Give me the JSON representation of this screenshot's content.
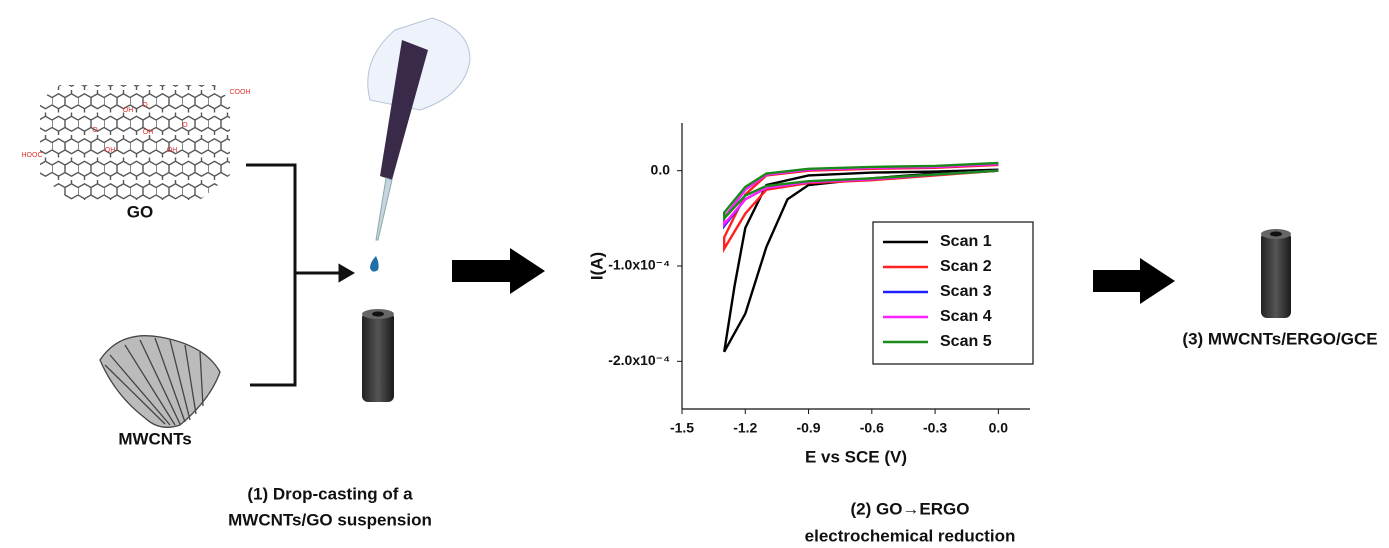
{
  "labels": {
    "go": "GO",
    "mwcnts": "MWCNTs",
    "step1": [
      "(1) Drop-casting of a",
      "MWCNTs/GO suspension"
    ],
    "step2": [
      "(2) GO→ERGO",
      "electrochemical reduction"
    ],
    "step3": "(3) MWCNTs/ERGO/GCE",
    "molecule": [
      "COOH",
      "HOOC",
      "OH",
      "OH",
      "OH",
      "OH",
      "O",
      "O",
      "O"
    ]
  },
  "chart_data": {
    "type": "line",
    "xlabel": "E vs SCE (V)",
    "ylabel": "I(A)",
    "xlim": [
      -1.5,
      0.15
    ],
    "ylim": [
      -0.00025,
      5e-05
    ],
    "xticks": [
      -1.5,
      -1.2,
      -0.9,
      -0.6,
      -0.3,
      {
        "value": 0,
        "label": "0.0"
      }
    ],
    "yticks": [
      {
        "value": 0,
        "label": "0.0"
      },
      {
        "value": -0.0001,
        "label": "-1.0x10⁻⁴"
      },
      {
        "value": -0.0002,
        "label": "-2.0x10⁻⁴"
      }
    ],
    "series": [
      {
        "name": "Scan 1",
        "color": "#000000",
        "x": [
          0,
          -0.3,
          -0.6,
          -0.9,
          -1.0,
          -1.1,
          -1.2,
          -1.3,
          -1.25,
          -1.2,
          -1.1,
          -0.9,
          -0.6,
          -0.3,
          0
        ],
        "values": [
          0,
          -3e-06,
          -8e-06,
          -1.5e-05,
          -3e-05,
          -8e-05,
          -0.00015,
          -0.00019,
          -0.00012,
          -6e-05,
          -1.5e-05,
          -5e-06,
          -2e-06,
          -1e-06,
          1e-06
        ]
      },
      {
        "name": "Scan 2",
        "color": "#ff2020",
        "x": [
          0,
          -0.3,
          -0.6,
          -0.9,
          -1.1,
          -1.2,
          -1.3,
          -1.3,
          -1.2,
          -1.1,
          -0.9,
          -0.6,
          -0.3,
          0
        ],
        "values": [
          0,
          -5e-06,
          -1e-05,
          -1.3e-05,
          -2e-05,
          -4.5e-05,
          -8.2e-05,
          -7e-05,
          -2.5e-05,
          -5e-06,
          0,
          2e-06,
          3e-06,
          6e-06
        ]
      },
      {
        "name": "Scan 3",
        "color": "#2020ff",
        "x": [
          0,
          -0.3,
          -0.6,
          -0.9,
          -1.1,
          -1.2,
          -1.3,
          -1.3,
          -1.2,
          -1.1,
          -0.9,
          -0.6,
          -0.3,
          0
        ],
        "values": [
          0,
          -4e-06,
          -9e-06,
          -1.2e-05,
          -1.8e-05,
          -3e-05,
          -5.8e-05,
          -5e-05,
          -2e-05,
          -4e-06,
          1e-06,
          3e-06,
          4e-06,
          7e-06
        ]
      },
      {
        "name": "Scan 4",
        "color": "#ff20ff",
        "x": [
          0,
          -0.3,
          -0.6,
          -0.9,
          -1.1,
          -1.2,
          -1.3,
          -1.3,
          -1.2,
          -1.1,
          -0.9,
          -0.6,
          -0.3,
          0
        ],
        "values": [
          0,
          -4e-06,
          -9e-06,
          -1.2e-05,
          -1.8e-05,
          -3e-05,
          -5.6e-05,
          -4.9e-05,
          -2e-05,
          -4e-06,
          1e-06,
          3e-06,
          4e-06,
          7e-06
        ]
      },
      {
        "name": "Scan 5",
        "color": "#1a8a1a",
        "x": [
          0,
          -0.3,
          -0.6,
          -0.9,
          -1.1,
          -1.2,
          -1.3,
          -1.3,
          -1.2,
          -1.1,
          -0.9,
          -0.6,
          -0.3,
          0
        ],
        "values": [
          0,
          -4e-06,
          -8e-06,
          -1.1e-05,
          -1.6e-05,
          -2.6e-05,
          -5e-05,
          -4.4e-05,
          -1.7e-05,
          -3e-06,
          2e-06,
          4e-06,
          5e-06,
          8e-06
        ]
      }
    ]
  }
}
